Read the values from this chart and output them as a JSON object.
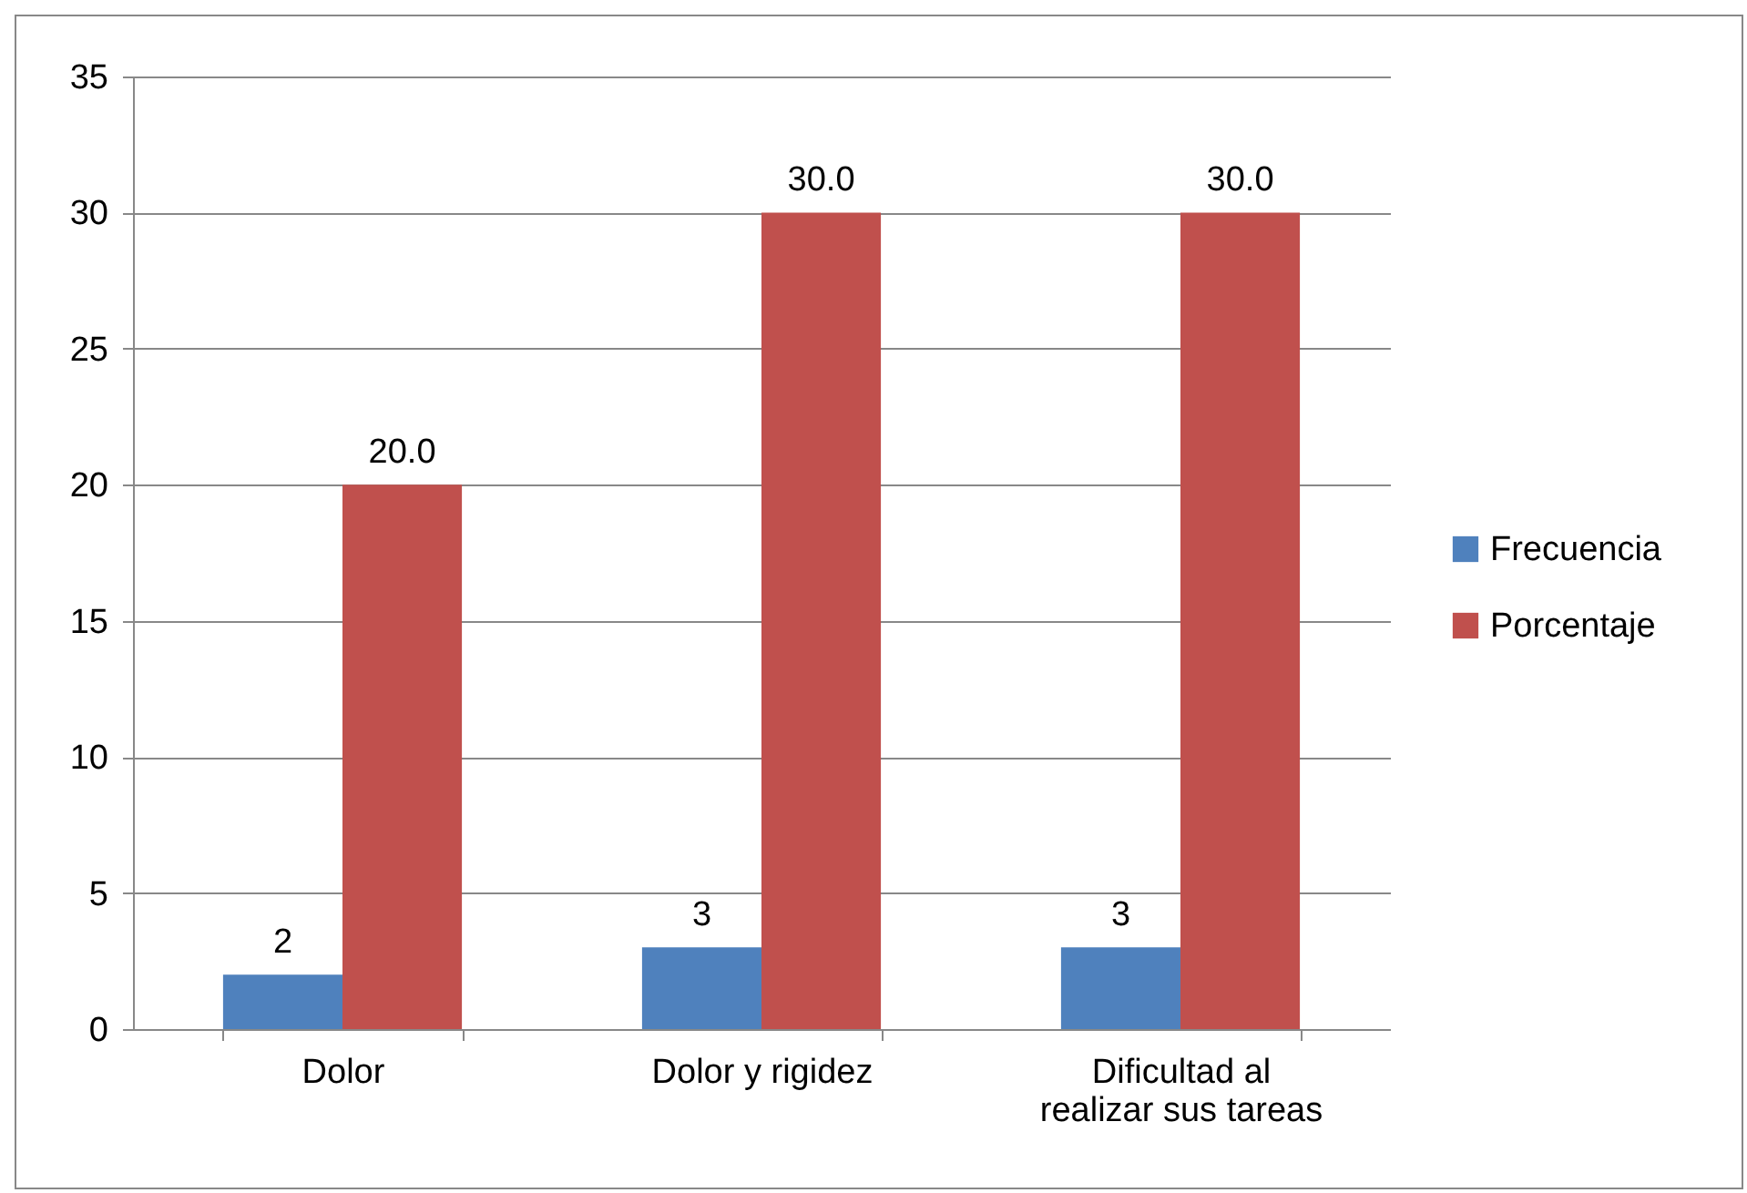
{
  "chart_data": {
    "type": "bar",
    "categories": [
      "Dolor",
      "Dolor y rigidez",
      "Dificultad al realizar sus tareas"
    ],
    "series": [
      {
        "name": "Frecuencia",
        "color": "#4f81bd",
        "values": [
          2,
          3,
          3
        ],
        "value_labels": [
          "2",
          "3",
          "3"
        ]
      },
      {
        "name": "Porcentaje",
        "color": "#c0504d",
        "values": [
          20,
          30,
          30
        ],
        "value_labels": [
          "20.0",
          "30.0",
          "30.0"
        ]
      }
    ],
    "ylim": [
      0,
      35
    ],
    "yticks": [
      0,
      5,
      10,
      15,
      20,
      25,
      30,
      35
    ],
    "grid": "y",
    "legend": "right"
  }
}
